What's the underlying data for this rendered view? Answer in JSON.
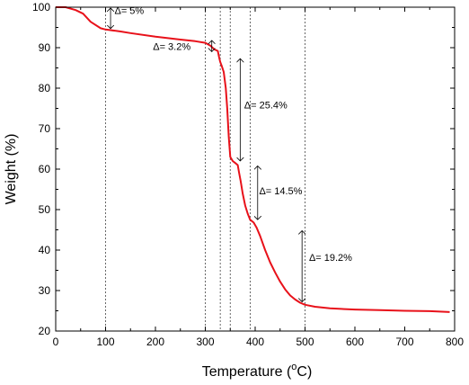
{
  "chart_data": {
    "type": "line",
    "xlabel": "Temperature (oC)",
    "xlabel_main": "Temperature (",
    "xlabel_sup": "o",
    "xlabel_unit": "C)",
    "ylabel": "Weight (%)",
    "xlim": [
      0,
      800
    ],
    "ylim": [
      20,
      100
    ],
    "x_ticks": [
      0,
      100,
      200,
      300,
      400,
      500,
      600,
      700,
      800
    ],
    "y_ticks": [
      20,
      30,
      40,
      50,
      60,
      70,
      80,
      90,
      100
    ],
    "grid": false,
    "line_color": "#e8111a",
    "series": [
      {
        "x": [
          0,
          20,
          40,
          55,
          70,
          90,
          100,
          130,
          150,
          200,
          250,
          280,
          300,
          310,
          318,
          325,
          328,
          330,
          333,
          337,
          341,
          344,
          347,
          350,
          355,
          360,
          365,
          368,
          371,
          375,
          380,
          385,
          390,
          393,
          397,
          403,
          410,
          420,
          430,
          440,
          450,
          460,
          470,
          480,
          490,
          500,
          520,
          550,
          600,
          650,
          700,
          750,
          790
        ],
        "y": [
          100,
          100,
          99.3,
          98.4,
          96.4,
          94.8,
          94.5,
          94.0,
          93.6,
          92.7,
          92.0,
          91.6,
          91.2,
          90.5,
          89.6,
          89.2,
          87.5,
          86.5,
          85.5,
          84.0,
          80.0,
          75.0,
          68.0,
          63.0,
          62.0,
          61.5,
          61.0,
          59.0,
          57.0,
          54.0,
          51.0,
          49.0,
          47.5,
          47.2,
          46.8,
          45.5,
          43.5,
          40.0,
          37.0,
          34.5,
          32.2,
          30.3,
          28.8,
          27.8,
          27.0,
          26.5,
          26.0,
          25.6,
          25.3,
          25.15,
          25.0,
          24.9,
          24.7
        ]
      }
    ],
    "dashed_lines_x": [
      100,
      300,
      330,
      350,
      390,
      500
    ],
    "annotations": [
      {
        "label": "Δ= 5%",
        "arrow_x": 110,
        "arrow_y": [
          100,
          94.5
        ],
        "text_x": 118,
        "text_y": 98.3
      },
      {
        "label": "Δ= 3.2%",
        "arrow_x": 313,
        "arrow_y": [
          92.0,
          88.8
        ],
        "text_x": 195,
        "text_y": 89.5
      },
      {
        "label": "Δ= 25.4%",
        "arrow_x": 370,
        "arrow_y": [
          87.5,
          61.8
        ],
        "text_x": 378,
        "text_y": 75.0
      },
      {
        "label": "Δ= 14.5%",
        "arrow_x": 405,
        "arrow_y": [
          61.0,
          47.3
        ],
        "text_x": 408,
        "text_y": 53.8
      },
      {
        "label": "Δ= 19.2%",
        "arrow_x": 494,
        "arrow_y": [
          45.0,
          27.0
        ],
        "text_x": 508,
        "text_y": 37.3
      }
    ]
  }
}
